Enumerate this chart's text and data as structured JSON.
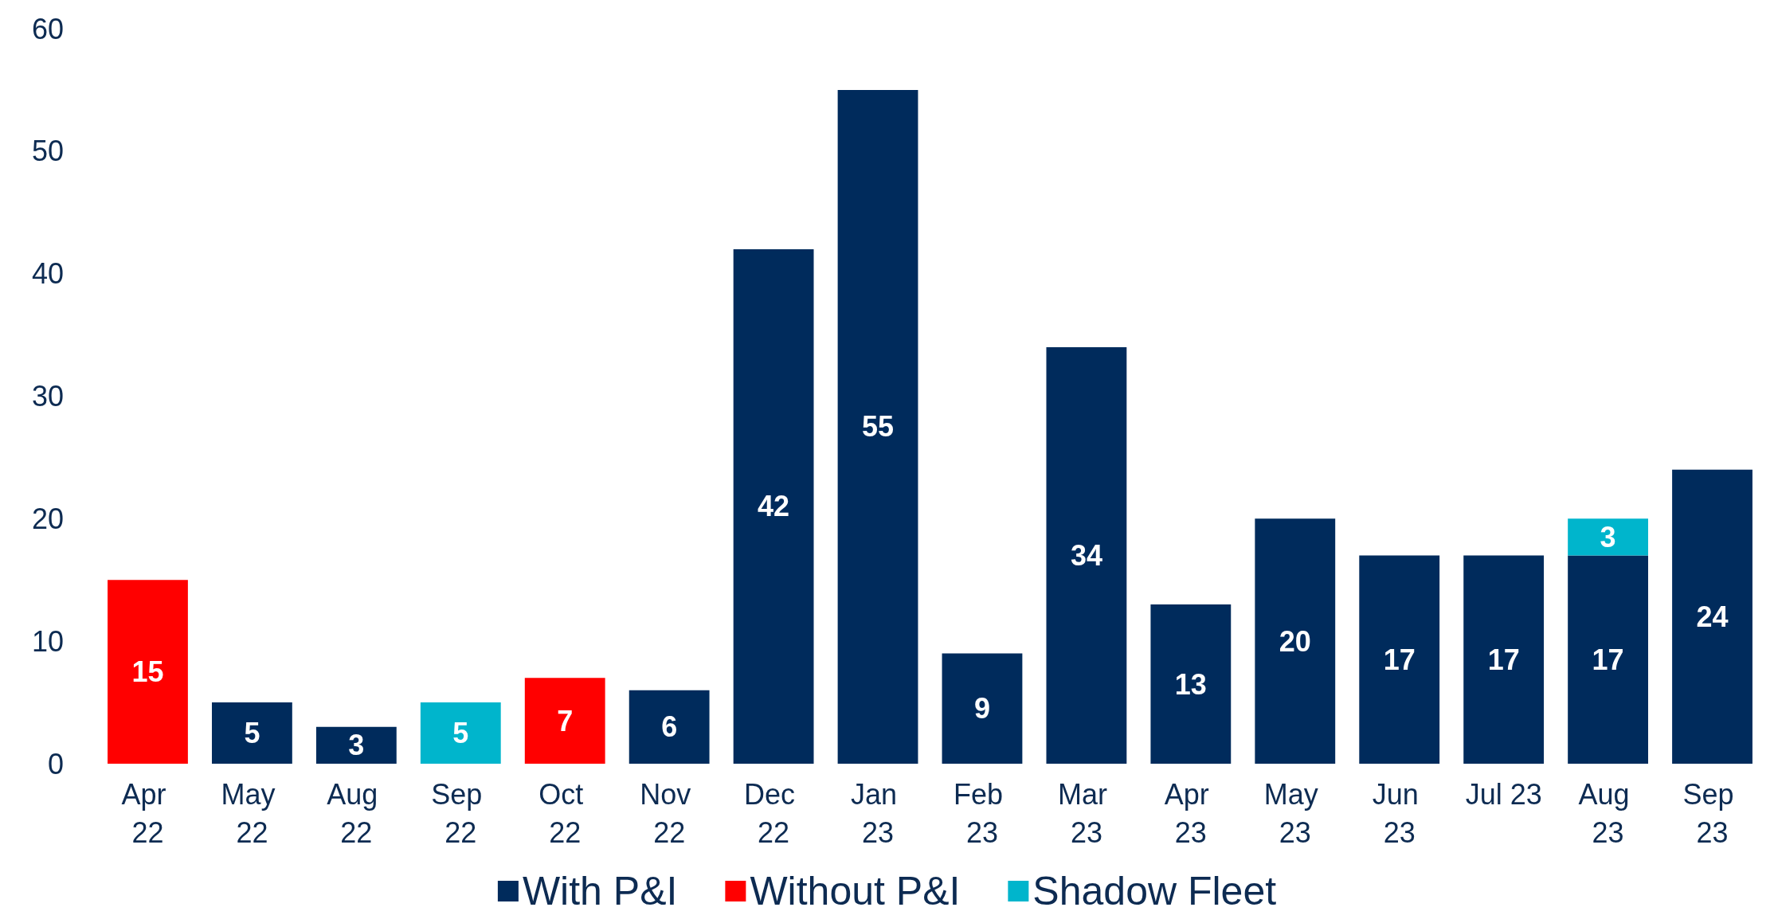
{
  "chart_data": {
    "type": "bar",
    "stacked": true,
    "data_labels": true,
    "grid": false,
    "legend": "bottom",
    "categories": [
      "Apr 22",
      "May 22",
      "Aug 22",
      "Sep 22",
      "Oct 22",
      "Nov 22",
      "Dec 22",
      "Jan 23",
      "Feb 23",
      "Mar 23",
      "Apr 23",
      "May 23",
      "Jun 23",
      "Jul 23",
      "Aug 23",
      "Sep 23"
    ],
    "series": [
      {
        "name": "With P&I",
        "color": "#002b5c",
        "values": [
          null,
          5,
          3,
          null,
          null,
          6,
          42,
          55,
          9,
          34,
          13,
          20,
          17,
          17,
          17,
          24
        ]
      },
      {
        "name": "Without P&I",
        "color": "#ff0000",
        "values": [
          15,
          null,
          null,
          null,
          7,
          null,
          null,
          null,
          null,
          null,
          null,
          null,
          null,
          null,
          null,
          null
        ]
      },
      {
        "name": "Shadow Fleet",
        "color": "#00b5cc",
        "values": [
          null,
          null,
          null,
          5,
          null,
          null,
          null,
          null,
          null,
          null,
          null,
          null,
          null,
          null,
          3,
          null
        ]
      }
    ],
    "ylim": [
      0,
      60
    ],
    "yticks": [
      0,
      10,
      20,
      30,
      40,
      50,
      60
    ]
  }
}
